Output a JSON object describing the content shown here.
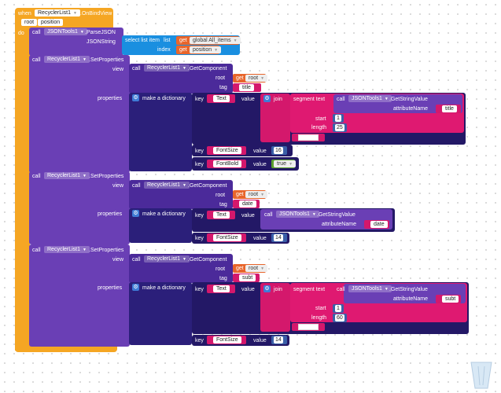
{
  "event": {
    "when_label": "when",
    "component": "RecyclerList1",
    "event_name": ".OnBindView",
    "params": [
      "root",
      "position"
    ],
    "do_label": "do"
  },
  "parse_call": {
    "call_label": "call",
    "component": "JSONTools1",
    "method": ".ParseJSON",
    "arg_label": "JSONString",
    "select": {
      "label": "select list item",
      "list_label": "list",
      "list_get": "get",
      "list_var": "global All_items",
      "index_label": "index",
      "index_get": "get",
      "index_var": "position"
    }
  },
  "common": {
    "call": "call",
    "set_properties": ".SetProperties",
    "recycler": "RecyclerList1",
    "view": "view",
    "root": "root",
    "tag": "tag",
    "properties": "properties",
    "get_component": ".GetComponent",
    "get": "get",
    "root_var": "root",
    "make_dict": "make a dictionary",
    "key": "key",
    "value": "value",
    "join": "join",
    "segment_text": "segment text",
    "start": "start",
    "length": "length",
    "json_tools": "JSONTools1",
    "get_string_value": ".GetStringValue",
    "attribute_name": "attributeName",
    "font_size": "FontSize",
    "font_bold": "FontBold",
    "text": "Text",
    "true": "true"
  },
  "blocks": [
    {
      "tag": "title",
      "attribute": "title",
      "start": "1",
      "length": "25",
      "font_size": "16",
      "font_bold": true
    },
    {
      "tag": "date",
      "attribute": "date",
      "font_size": "14"
    },
    {
      "tag": "subt",
      "attribute": "subt",
      "start": "1",
      "length": "60",
      "font_size": "14"
    }
  ],
  "colors": {
    "event": "#f5a623",
    "component": "#6a3fb5",
    "dictionary": "#2b1f7a",
    "text": "#d4186c",
    "list": "#1a8fe0",
    "math": "#3b5fa8",
    "logic": "#5aa02c",
    "variable": "#e8652b"
  }
}
